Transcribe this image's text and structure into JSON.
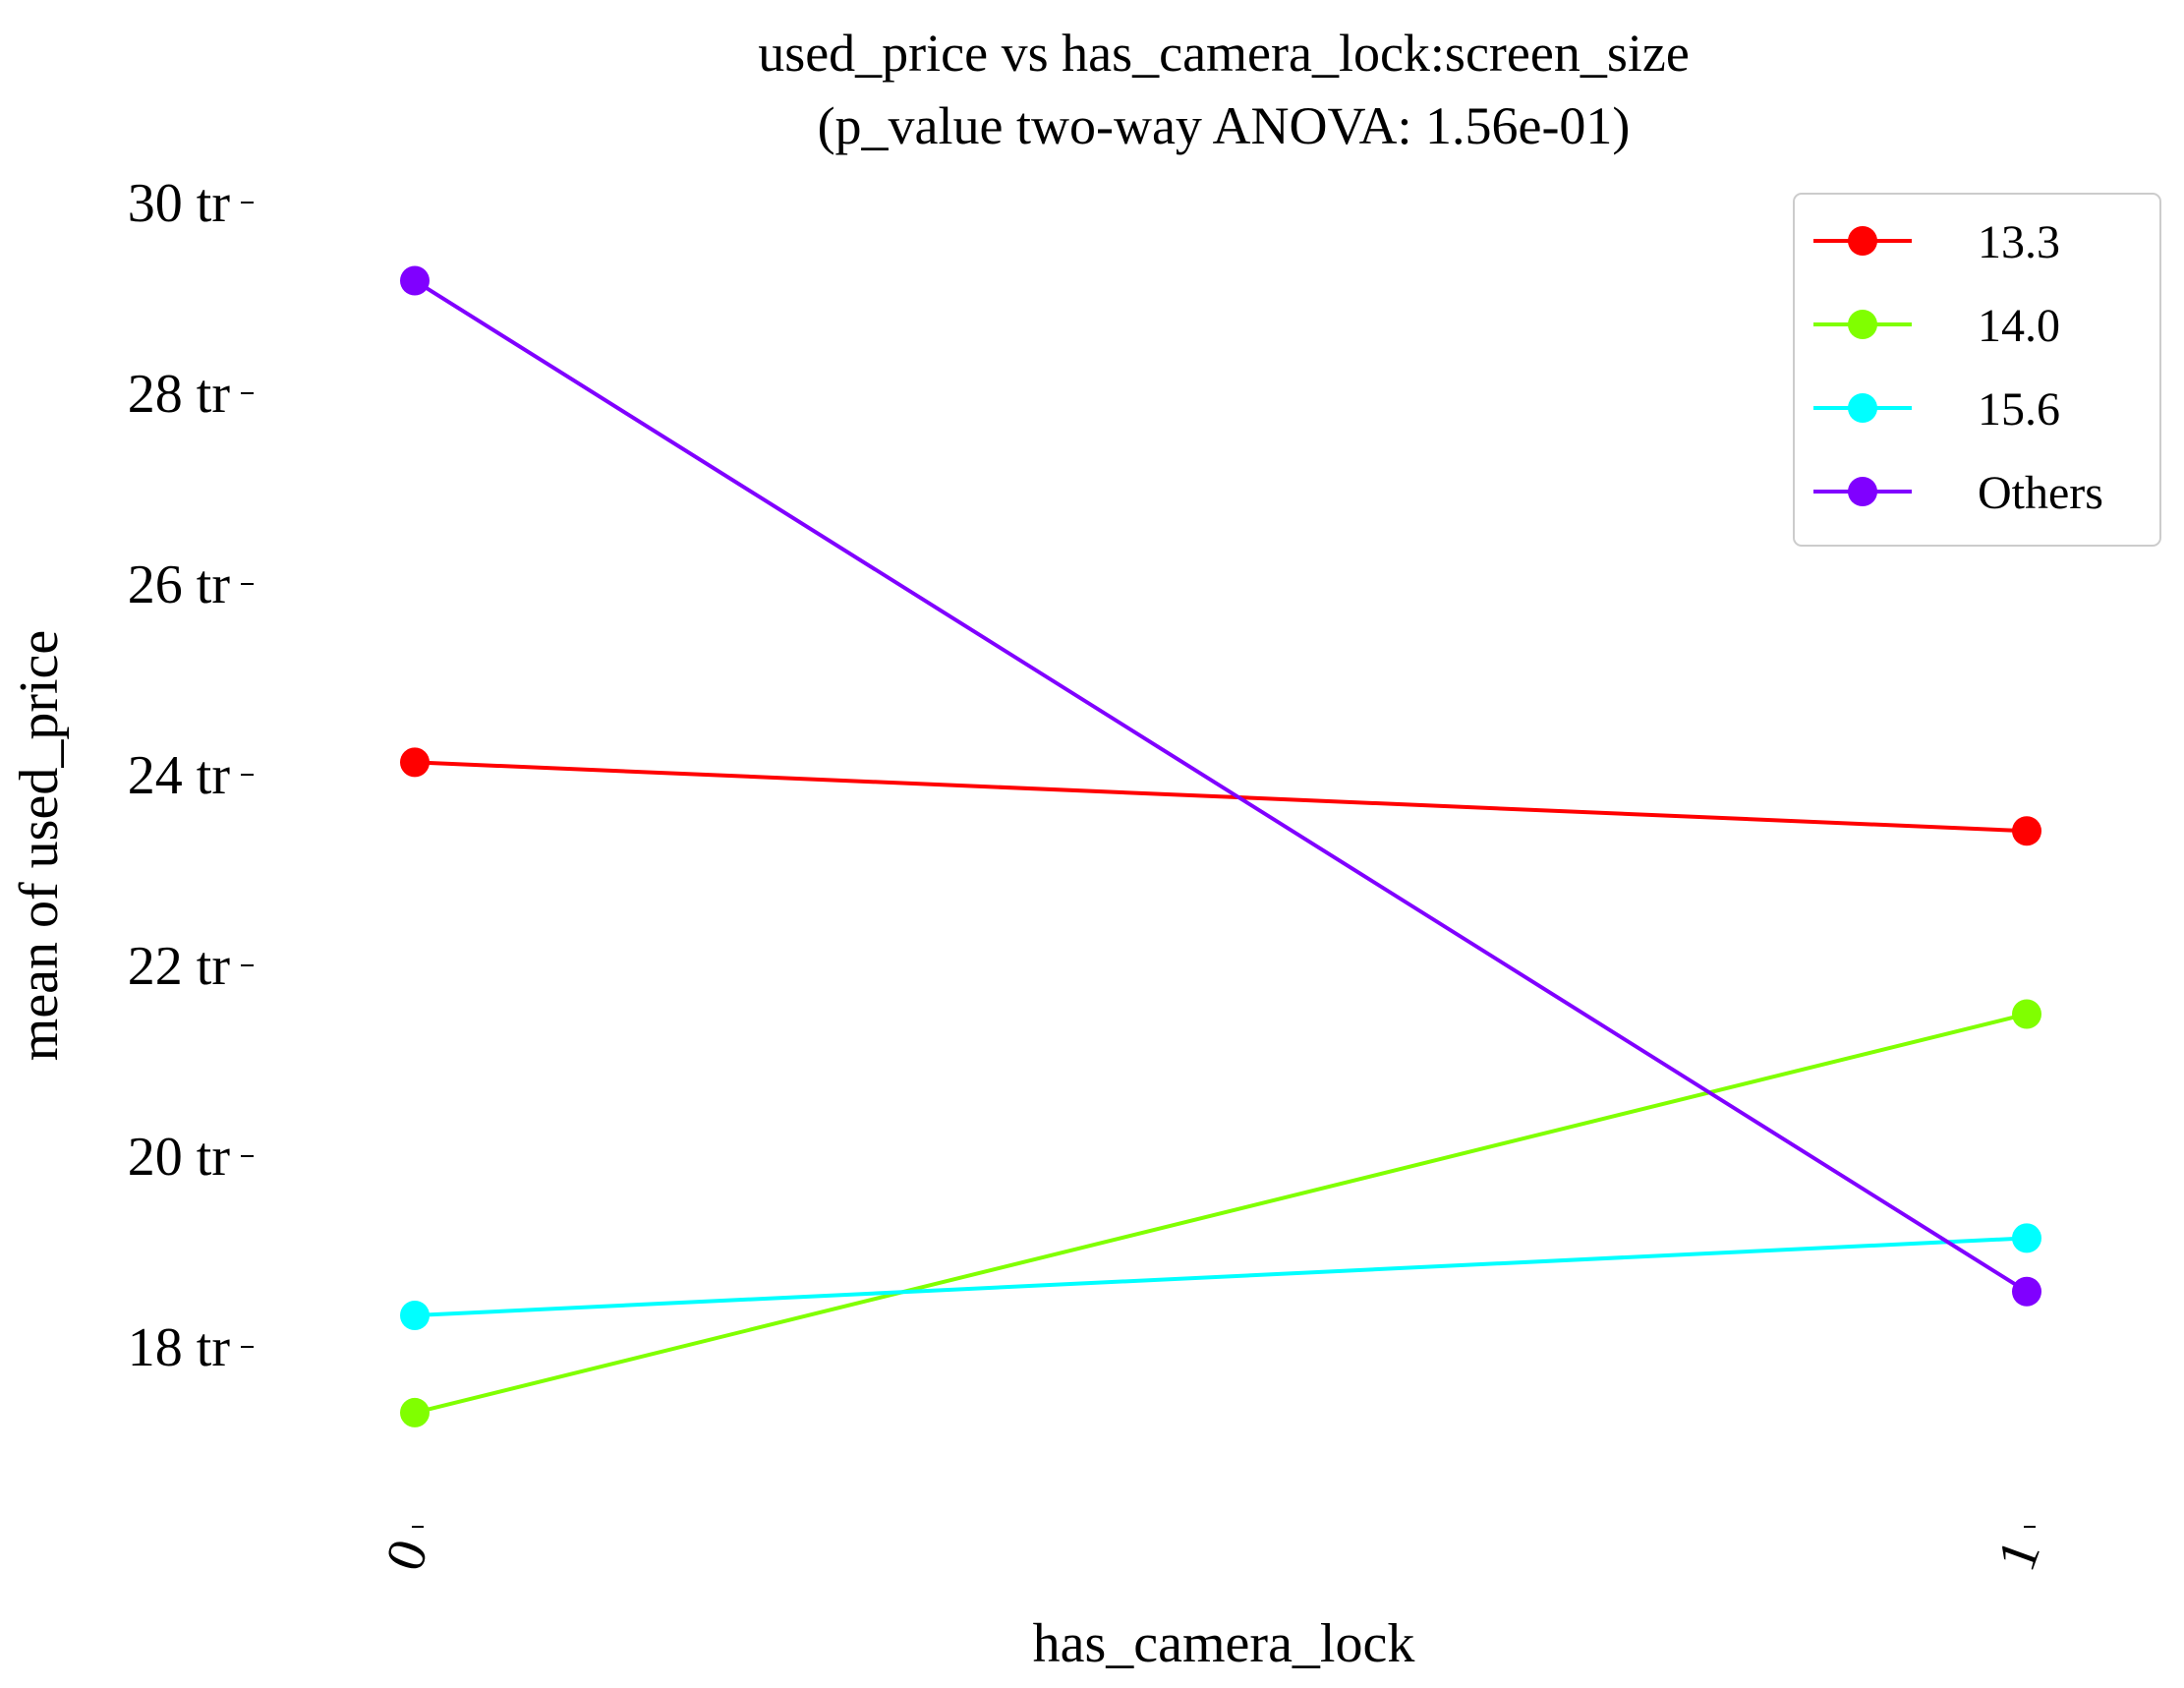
{
  "chart_data": {
    "type": "line",
    "title": "used_price vs has_camera_lock:screen_size",
    "subtitle": "(p_value two-way ANOVA: 1.56e-01)",
    "xlabel": "has_camera_lock",
    "ylabel": "mean of used_price",
    "categories": [
      "0",
      "1"
    ],
    "y_tick_values": [
      18,
      20,
      22,
      24,
      26,
      28,
      30
    ],
    "y_tick_labels": [
      "18 tr",
      "20 tr",
      "22 tr",
      "24 tr",
      "26 tr",
      "28 tr",
      "30 tr"
    ],
    "ylim": [
      16.0,
      30.3
    ],
    "grid": false,
    "legend_position": "top-right",
    "series": [
      {
        "name": "13.3",
        "color": "#ff0000",
        "values": [
          24.13,
          23.41
        ]
      },
      {
        "name": "14.0",
        "color": "#80ff00",
        "values": [
          17.31,
          21.49
        ]
      },
      {
        "name": "15.6",
        "color": "#00ffff",
        "values": [
          18.33,
          19.14
        ]
      },
      {
        "name": "Others",
        "color": "#8000ff",
        "values": [
          29.18,
          18.58
        ]
      }
    ]
  }
}
